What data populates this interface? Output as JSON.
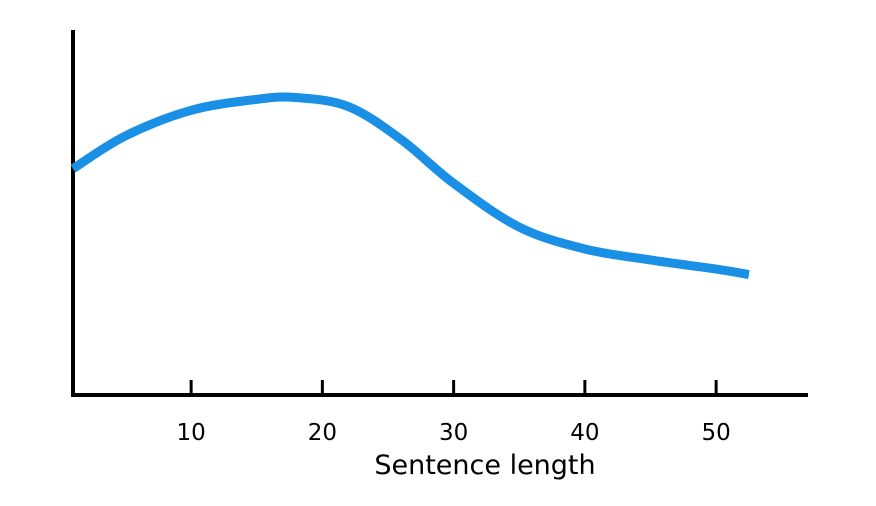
{
  "chart_data": {
    "type": "line",
    "title": "",
    "xlabel": "Sentence length",
    "ylabel": "",
    "xlim": [
      1,
      57
    ],
    "ylim": [
      0,
      100
    ],
    "x_ticks": [
      10,
      20,
      30,
      40,
      50
    ],
    "y_ticks": [],
    "grid": false,
    "legend": "none",
    "series": [
      {
        "color": "#1a8fe6",
        "x": [
          1,
          5,
          10,
          15,
          18,
          22,
          26,
          30,
          35,
          40,
          45,
          50,
          52.5
        ],
        "y": [
          62,
          71,
          78,
          81,
          81.5,
          79,
          70,
          58,
          46,
          40,
          37,
          34.5,
          33
        ]
      }
    ]
  }
}
